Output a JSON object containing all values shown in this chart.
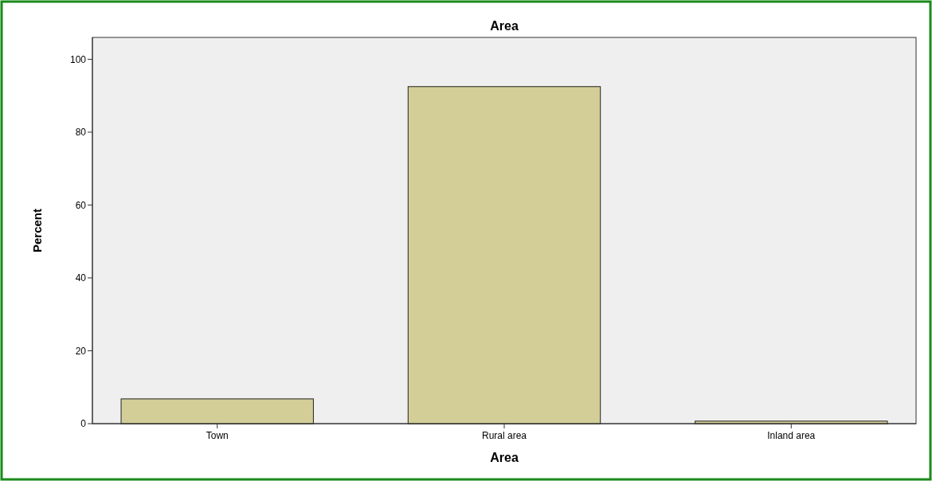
{
  "chart_data": {
    "type": "bar",
    "title": "Area",
    "xlabel": "Area",
    "ylabel": "Percent",
    "categories": [
      "Town",
      "Rural area",
      "Inland area"
    ],
    "values": [
      6.8,
      92.5,
      0.7
    ],
    "color": "#d3ce98",
    "ylim": [
      0,
      106
    ],
    "yticks": [
      0,
      20,
      40,
      60,
      80,
      100
    ],
    "grid": false
  }
}
